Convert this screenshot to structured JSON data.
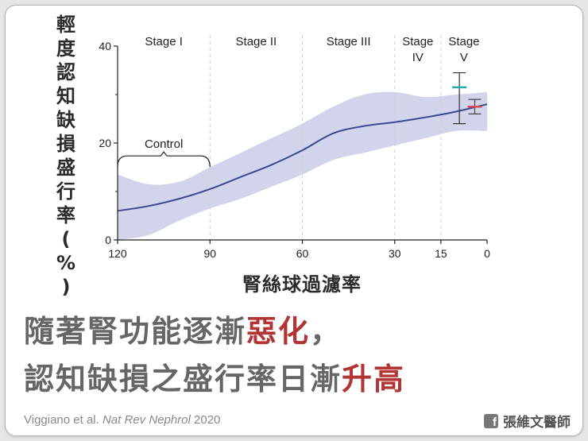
{
  "chart_data": {
    "type": "line",
    "ylabel": "輕度認知缺損盛行率(%)",
    "xlabel": "腎絲球過濾率",
    "xlim": [
      120,
      0
    ],
    "ylim": [
      0,
      40
    ],
    "x_ticks": [
      "120",
      "90",
      "60",
      "30",
      "15",
      "0"
    ],
    "y_ticks": [
      "0",
      "20",
      "40"
    ],
    "stages": [
      {
        "lines": [
          "Stage I"
        ],
        "x_from": 120,
        "x_to": 90
      },
      {
        "lines": [
          "Stage II"
        ],
        "x_from": 90,
        "x_to": 60
      },
      {
        "lines": [
          "Stage III"
        ],
        "x_from": 60,
        "x_to": 30
      },
      {
        "lines": [
          "Stage",
          "IV"
        ],
        "x_from": 30,
        "x_to": 15
      },
      {
        "lines": [
          "Stage",
          "V"
        ],
        "x_from": 15,
        "x_to": 0
      }
    ],
    "annotation": {
      "text": "Control",
      "x_from": 120,
      "x_to": 90,
      "y": 18
    },
    "series": [
      {
        "values": [
          {
            "x": 120,
            "y": 6
          },
          {
            "x": 110,
            "y": 7
          },
          {
            "x": 100,
            "y": 8.5
          },
          {
            "x": 90,
            "y": 10.5
          },
          {
            "x": 80,
            "y": 13
          },
          {
            "x": 70,
            "y": 15.5
          },
          {
            "x": 60,
            "y": 18.5
          },
          {
            "x": 50,
            "y": 22
          },
          {
            "x": 40,
            "y": 23.5
          },
          {
            "x": 30,
            "y": 24.3
          },
          {
            "x": 20,
            "y": 25.3
          },
          {
            "x": 10,
            "y": 26.5
          },
          {
            "x": 0,
            "y": 28
          }
        ],
        "band_upper": [
          {
            "x": 120,
            "y": 13.5
          },
          {
            "x": 110,
            "y": 11.5
          },
          {
            "x": 100,
            "y": 12
          },
          {
            "x": 90,
            "y": 15
          },
          {
            "x": 80,
            "y": 18
          },
          {
            "x": 70,
            "y": 21
          },
          {
            "x": 60,
            "y": 24
          },
          {
            "x": 50,
            "y": 27.5
          },
          {
            "x": 40,
            "y": 30
          },
          {
            "x": 30,
            "y": 30.5
          },
          {
            "x": 20,
            "y": 29.5
          },
          {
            "x": 10,
            "y": 30
          },
          {
            "x": 0,
            "y": 30.5
          }
        ],
        "band_lower": [
          {
            "x": 120,
            "y": 0
          },
          {
            "x": 110,
            "y": 1
          },
          {
            "x": 100,
            "y": 4
          },
          {
            "x": 90,
            "y": 6.5
          },
          {
            "x": 80,
            "y": 8.5
          },
          {
            "x": 70,
            "y": 11
          },
          {
            "x": 60,
            "y": 13.5
          },
          {
            "x": 50,
            "y": 16.5
          },
          {
            "x": 40,
            "y": 18
          },
          {
            "x": 30,
            "y": 19.5
          },
          {
            "x": 20,
            "y": 21
          },
          {
            "x": 10,
            "y": 22.5
          },
          {
            "x": 0,
            "y": 22.5
          }
        ]
      }
    ],
    "error_bars": [
      {
        "x": 9,
        "y": 31.5,
        "low": 24,
        "high": 34.5
      },
      {
        "x": 4,
        "y": 27.5,
        "low": 26,
        "high": 29
      }
    ],
    "colors": {
      "line": "#3b4a90",
      "band": "#c9cde8",
      "error_bar_1": "#333333",
      "marker_1": "#2aa7b4",
      "marker_2": "#d94a5a",
      "error_bar_2": "#444444"
    },
    "grid": false
  },
  "headline": {
    "line1_prefix": "隨著腎功能逐漸",
    "line1_highlight": "惡化",
    "line1_suffix": "，",
    "line2_prefix": "認知缺損之盛行率日漸",
    "line2_highlight": "升高"
  },
  "citation": {
    "authors": "Viggiano et al. ",
    "journal": "Nat Rev Nephrol",
    "year": " 2020"
  },
  "brand": {
    "icon": "facebook-icon",
    "icon_glyph": "f",
    "name": "張維文醫師"
  },
  "theme": {
    "highlight": "#b23535",
    "headline_gray": "#666666"
  }
}
